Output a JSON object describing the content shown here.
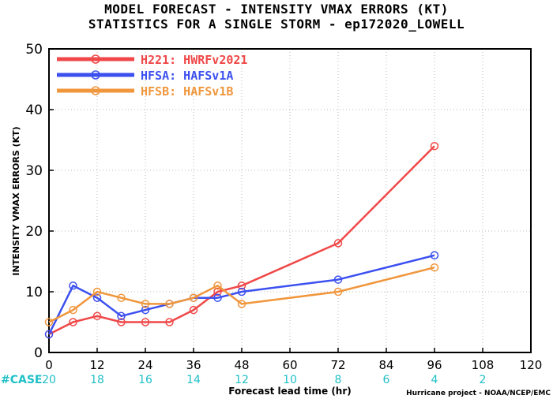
{
  "chart_data": {
    "type": "line",
    "title": [
      "MODEL FORECAST - INTENSITY VMAX ERRORS (KT)",
      "STATISTICS FOR A SINGLE STORM - ep172020_LOWELL"
    ],
    "xlabel": "Forecast lead time (hr)",
    "ylabel": "INTENSITY VMAX ERRORS (KT)",
    "xlim": [
      0,
      120
    ],
    "ylim": [
      0,
      50
    ],
    "xticks": [
      0,
      12,
      24,
      36,
      48,
      60,
      72,
      84,
      96,
      108,
      120
    ],
    "yticks": [
      0,
      10,
      20,
      30,
      40,
      50
    ],
    "grid": true,
    "legend_position": "top-left",
    "series": [
      {
        "name": "H221: HWRFv2021",
        "color": "#f04848",
        "points": [
          [
            0,
            3
          ],
          [
            6,
            5
          ],
          [
            12,
            6
          ],
          [
            18,
            5
          ],
          [
            24,
            5
          ],
          [
            30,
            5
          ],
          [
            36,
            7
          ],
          [
            42,
            10
          ],
          [
            48,
            11
          ],
          [
            72,
            18
          ],
          [
            96,
            34
          ]
        ]
      },
      {
        "name": "HFSA: HAFSv1A",
        "color": "#3c50f0",
        "points": [
          [
            0,
            3
          ],
          [
            6,
            11
          ],
          [
            12,
            9
          ],
          [
            18,
            6
          ],
          [
            24,
            7
          ],
          [
            30,
            8
          ],
          [
            36,
            9
          ],
          [
            42,
            9
          ],
          [
            48,
            10
          ],
          [
            72,
            12
          ],
          [
            96,
            16
          ]
        ]
      },
      {
        "name": "HFSB: HAFSv1B",
        "color": "#f0963c",
        "points": [
          [
            0,
            5
          ],
          [
            6,
            7
          ],
          [
            12,
            10
          ],
          [
            18,
            9
          ],
          [
            24,
            8
          ],
          [
            30,
            8
          ],
          [
            36,
            9
          ],
          [
            42,
            11
          ],
          [
            48,
            8
          ],
          [
            72,
            10
          ],
          [
            96,
            14
          ]
        ]
      }
    ],
    "cases": {
      "label": "#CASE",
      "color": "#20c0c8",
      "values": [
        [
          0,
          20
        ],
        [
          12,
          18
        ],
        [
          24,
          16
        ],
        [
          36,
          14
        ],
        [
          48,
          12
        ],
        [
          60,
          10
        ],
        [
          72,
          8
        ],
        [
          84,
          6
        ],
        [
          96,
          4
        ],
        [
          108,
          2
        ]
      ]
    },
    "credit": "Hurricane project - NOAA/NCEP/EMC"
  }
}
